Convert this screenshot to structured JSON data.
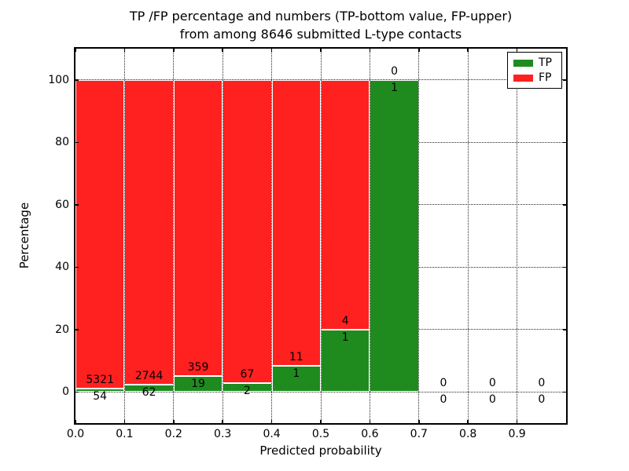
{
  "figure": {
    "title_line1": "TP /FP percentage and numbers (TP-bottom value, FP-upper)",
    "title_line2": "from among 8646 submitted L-type contacts",
    "total_submitted_in_title": "8646"
  },
  "legend": {
    "tp_label": "TP",
    "fp_label": "FP"
  },
  "colors": {
    "tp_green": "#1f8b1f",
    "fp_red": "#ff2020",
    "text": "#000000",
    "grid": "#000000",
    "background": "#ffffff"
  },
  "chart_data": {
    "type": "bar",
    "stacked": true,
    "title": "TP /FP percentage and numbers (TP-bottom value, FP-upper)\nfrom among 8646 submitted L-type contacts",
    "xlabel": "Predicted probability",
    "ylabel": "Percentage",
    "xlim": [
      0.0,
      1.0
    ],
    "ylim": [
      -10,
      110
    ],
    "x_ticks": [
      "0.0",
      "0.1",
      "0.2",
      "0.3",
      "0.4",
      "0.5",
      "0.6",
      "0.7",
      "0.8",
      "0.9"
    ],
    "y_ticks": [
      0,
      20,
      40,
      60,
      80,
      100
    ],
    "grid": "dotted both axes",
    "legend_position": "upper right",
    "series": [
      {
        "name": "TP",
        "color": "#1f8b1f",
        "role": "bottom segment, percentage of bin"
      },
      {
        "name": "FP",
        "color": "#ff2020",
        "role": "upper segment, percentage of bin"
      }
    ],
    "bins": [
      {
        "range": [
          0.0,
          0.1
        ],
        "tp": 54,
        "fp": 5321,
        "tp_pct": 1.0,
        "fp_pct": 99.0
      },
      {
        "range": [
          0.1,
          0.2
        ],
        "tp": 62,
        "fp": 2744,
        "tp_pct": 2.21,
        "fp_pct": 97.79
      },
      {
        "range": [
          0.2,
          0.3
        ],
        "tp": 19,
        "fp": 359,
        "tp_pct": 5.03,
        "fp_pct": 94.97
      },
      {
        "range": [
          0.3,
          0.4
        ],
        "tp": 2,
        "fp": 67,
        "tp_pct": 2.9,
        "fp_pct": 97.1
      },
      {
        "range": [
          0.4,
          0.5
        ],
        "tp": 1,
        "fp": 11,
        "tp_pct": 8.33,
        "fp_pct": 91.67
      },
      {
        "range": [
          0.5,
          0.6
        ],
        "tp": 1,
        "fp": 4,
        "tp_pct": 20.0,
        "fp_pct": 80.0
      },
      {
        "range": [
          0.6,
          0.7
        ],
        "tp": 1,
        "fp": 0,
        "tp_pct": 100.0,
        "fp_pct": 0.0
      },
      {
        "range": [
          0.7,
          0.8
        ],
        "tp": 0,
        "fp": 0,
        "tp_pct": null,
        "fp_pct": null
      },
      {
        "range": [
          0.8,
          0.9
        ],
        "tp": 0,
        "fp": 0,
        "tp_pct": null,
        "fp_pct": null
      },
      {
        "range": [
          0.9,
          1.0
        ],
        "tp": 0,
        "fp": 0,
        "tp_pct": null,
        "fp_pct": null
      }
    ]
  }
}
